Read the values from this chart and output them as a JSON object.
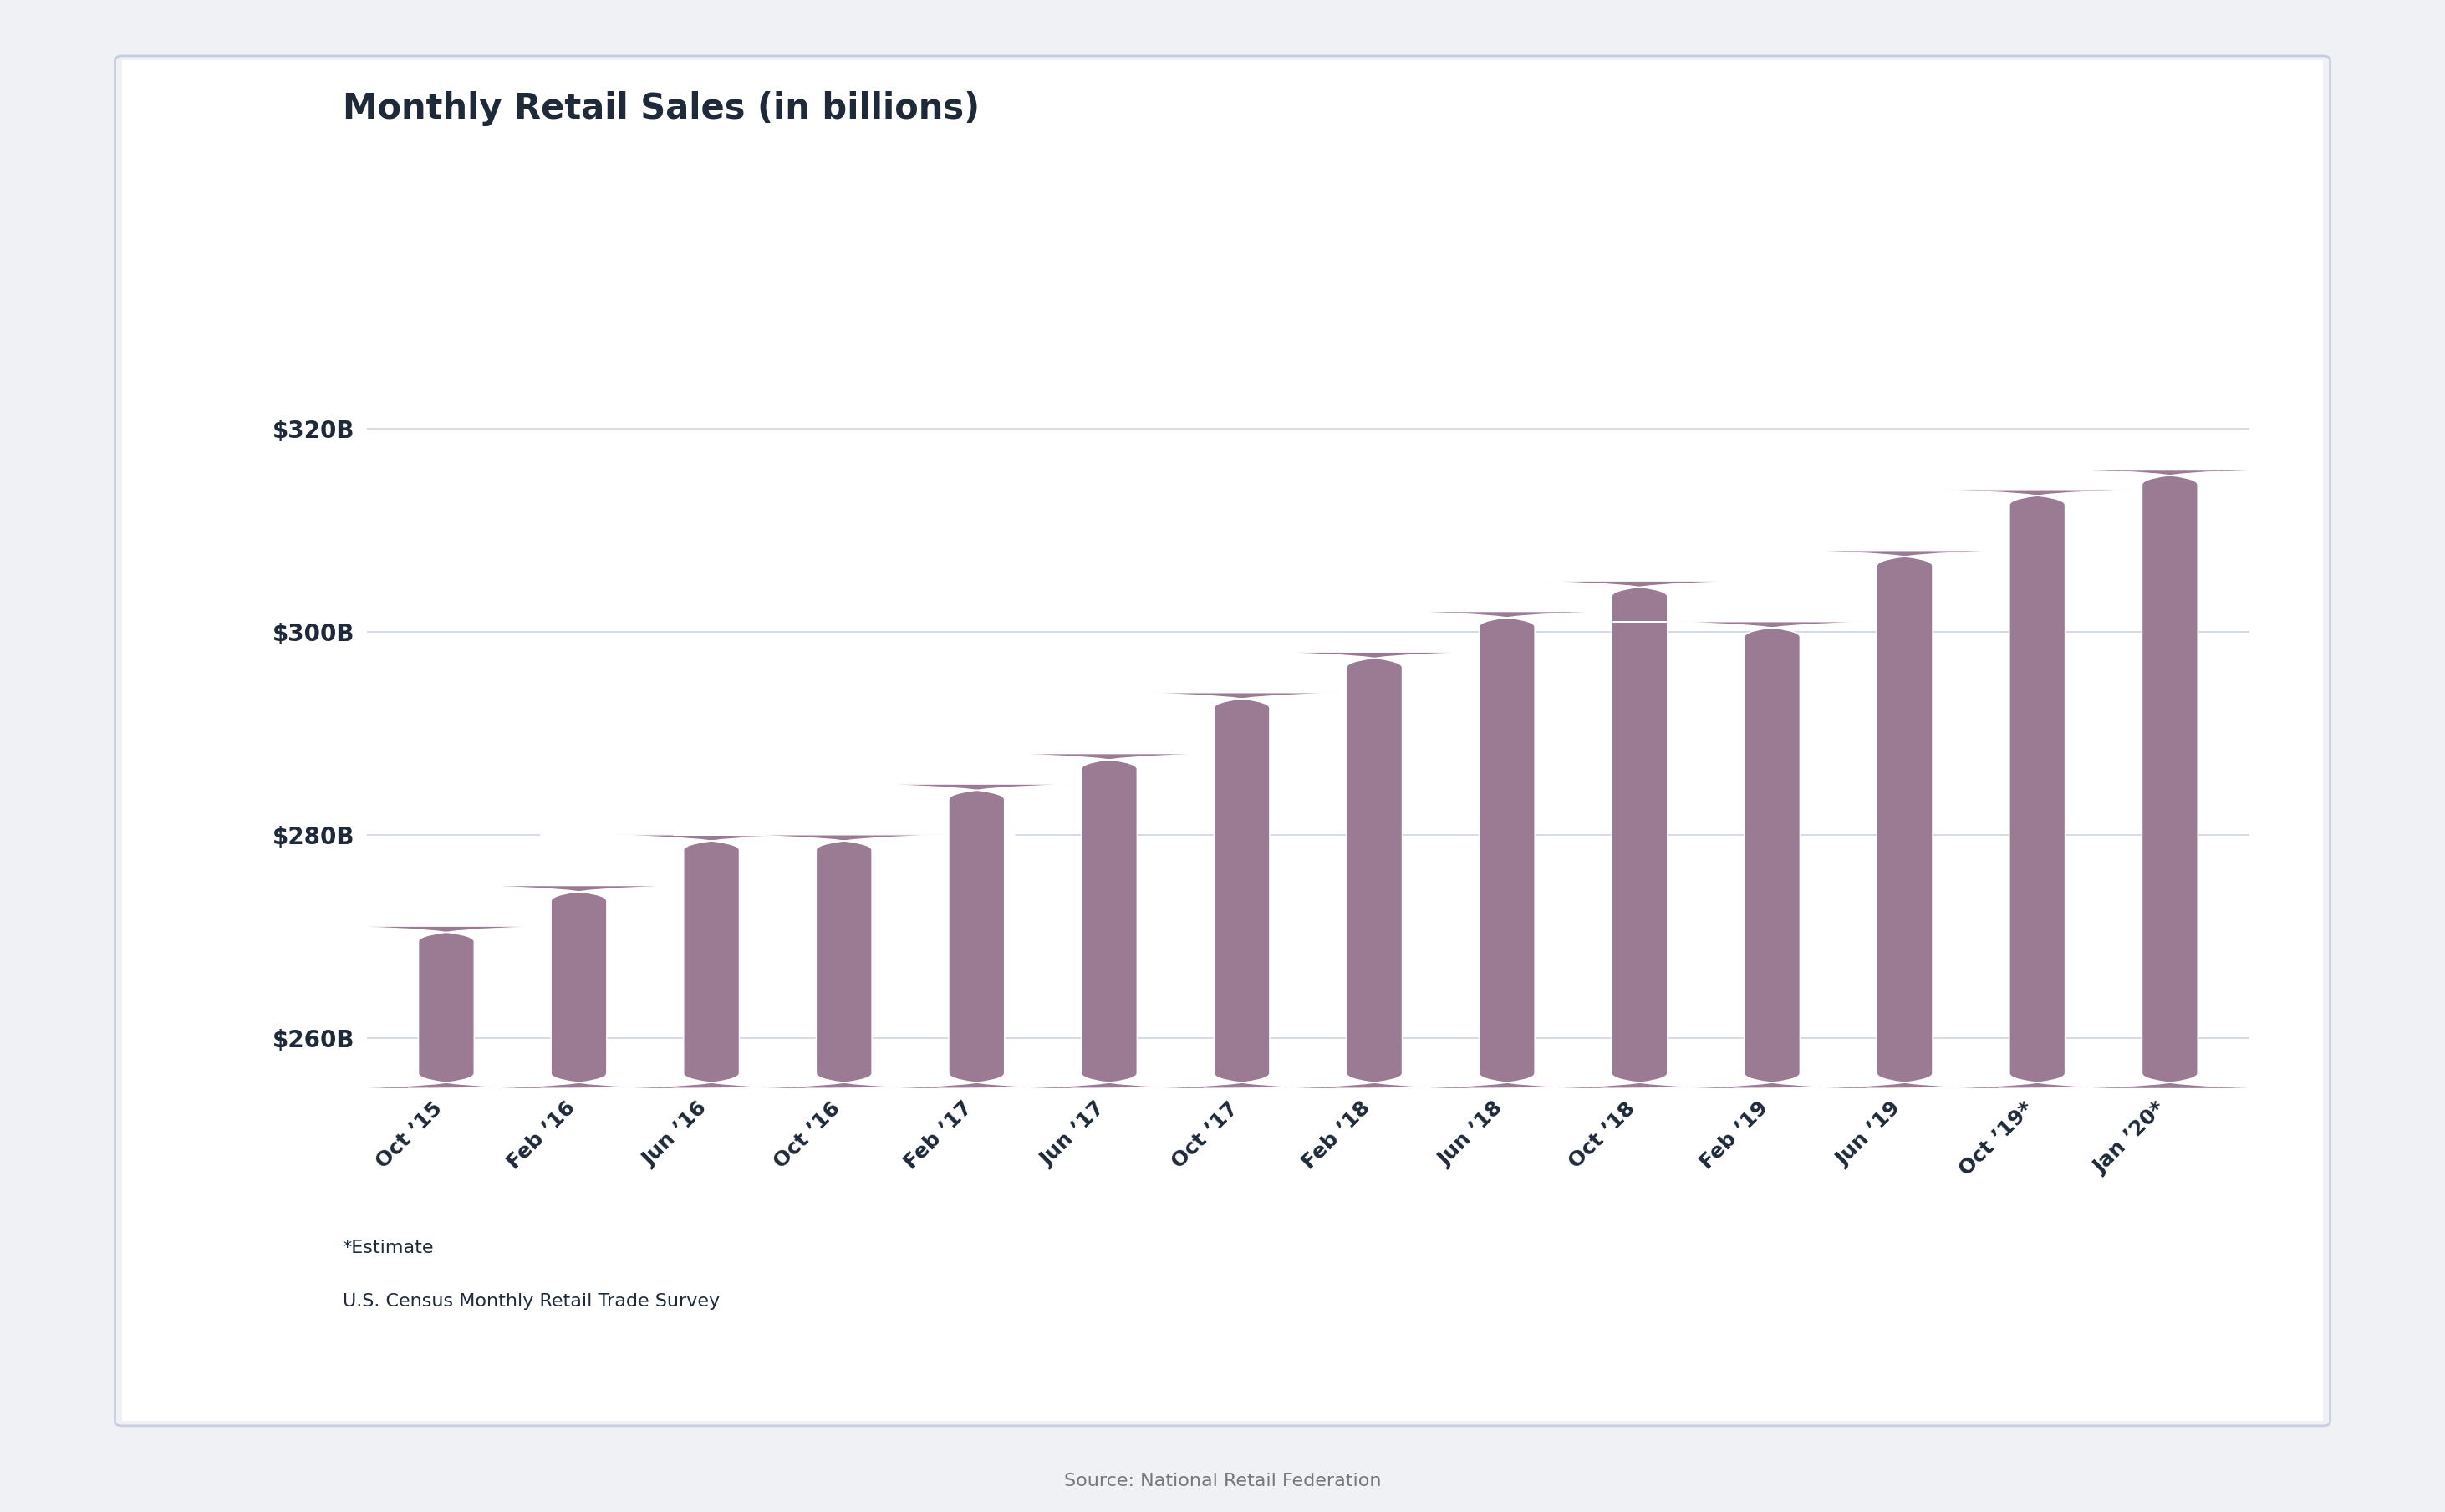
{
  "title": "Monthly Retail Sales (in billions)",
  "categories": [
    "Oct ’15",
    "Feb ’16",
    "Jun ’16",
    "Oct ’16",
    "Feb ’17",
    "Jun ’17",
    "Oct ’17",
    "Feb ’18",
    "Jun ’18",
    "Oct ’18",
    "Feb ’19",
    "Jun ’19",
    "Oct ’19*",
    "Jan ’20*"
  ],
  "values": [
    271,
    275,
    280,
    280,
    285,
    288,
    294,
    298,
    302,
    305,
    301,
    308,
    314,
    316
  ],
  "bar_color": "#9b7a94",
  "ylim_min": 255,
  "ylim_max": 325,
  "yticks": [
    260,
    280,
    300,
    320
  ],
  "ytick_labels": [
    "$260B",
    "$280B",
    "$300B",
    "$320B"
  ],
  "title_fontsize": 30,
  "tick_fontsize": 20,
  "xtick_fontsize": 18,
  "panel_bg": "#ffffff",
  "outer_bg": "#eff1f5",
  "note1": "*Estimate",
  "note2": "U.S. Census Monthly Retail Trade Survey",
  "source": "Source: National Retail Federation",
  "text_color": "#1e2a3a",
  "grid_color": "#d0d4e0",
  "note_fontsize": 16,
  "source_fontsize": 16,
  "border_color": "#c8cee0"
}
